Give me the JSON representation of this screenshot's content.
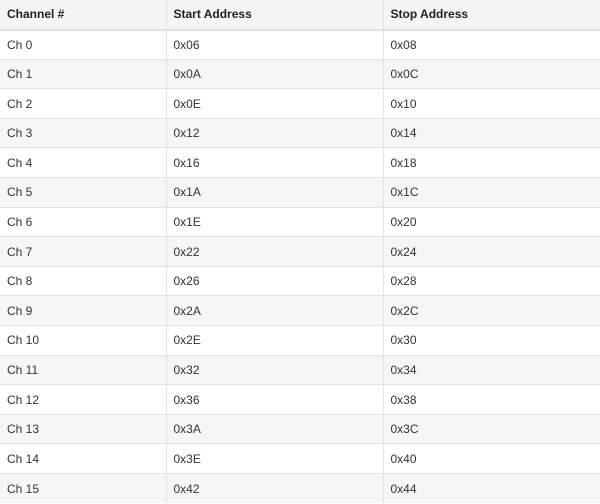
{
  "table": {
    "headers": [
      "Channel #",
      "Start Address",
      "Stop Address"
    ],
    "rows": [
      [
        "Ch 0",
        "0x06",
        "0x08"
      ],
      [
        "Ch 1",
        "0x0A",
        "0x0C"
      ],
      [
        "Ch 2",
        "0x0E",
        "0x10"
      ],
      [
        "Ch 3",
        "0x12",
        "0x14"
      ],
      [
        "Ch 4",
        "0x16",
        "0x18"
      ],
      [
        "Ch 5",
        "0x1A",
        "0x1C"
      ],
      [
        "Ch 6",
        "0x1E",
        "0x20"
      ],
      [
        "Ch 7",
        "0x22",
        "0x24"
      ],
      [
        "Ch 8",
        "0x26",
        "0x28"
      ],
      [
        "Ch 9",
        "0x2A",
        "0x2C"
      ],
      [
        "Ch 10",
        "0x2E",
        "0x30"
      ],
      [
        "Ch 11",
        "0x32",
        "0x34"
      ],
      [
        "Ch 12",
        "0x36",
        "0x38"
      ],
      [
        "Ch 13",
        "0x3A",
        "0x3C"
      ],
      [
        "Ch 14",
        "0x3E",
        "0x40"
      ],
      [
        "Ch 15",
        "0x42",
        "0x44"
      ]
    ]
  }
}
